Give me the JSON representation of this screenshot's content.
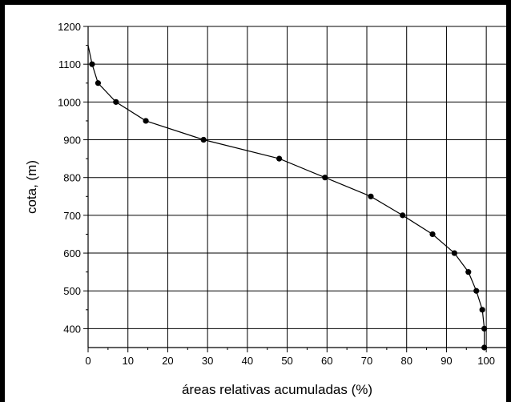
{
  "chart_data": {
    "type": "line",
    "title": "",
    "xlabel": "áreas relativas acumuladas (%)",
    "ylabel": "cota, (m)",
    "xlim": [
      0,
      105
    ],
    "ylim": [
      350,
      1200
    ],
    "xticks": [
      0,
      10,
      20,
      30,
      40,
      50,
      60,
      70,
      80,
      90,
      100
    ],
    "yticks": [
      400,
      500,
      600,
      700,
      800,
      900,
      1000,
      1100,
      1200
    ],
    "grid": true,
    "legend": "none",
    "line_color": "#000000",
    "curve_start": {
      "x": 0,
      "y": 1150
    },
    "series": [
      {
        "points": [
          {
            "x": 1,
            "y": 1100
          },
          {
            "x": 2.5,
            "y": 1050
          },
          {
            "x": 7,
            "y": 1000
          },
          {
            "x": 14.5,
            "y": 950
          },
          {
            "x": 29,
            "y": 900
          },
          {
            "x": 48,
            "y": 850
          },
          {
            "x": 59.5,
            "y": 800
          },
          {
            "x": 71,
            "y": 750
          },
          {
            "x": 79,
            "y": 700
          },
          {
            "x": 86.5,
            "y": 650
          },
          {
            "x": 92,
            "y": 600
          },
          {
            "x": 95.5,
            "y": 550
          },
          {
            "x": 97.5,
            "y": 500
          },
          {
            "x": 99,
            "y": 450
          },
          {
            "x": 99.5,
            "y": 400
          },
          {
            "x": 99.5,
            "y": 350
          }
        ]
      }
    ]
  }
}
